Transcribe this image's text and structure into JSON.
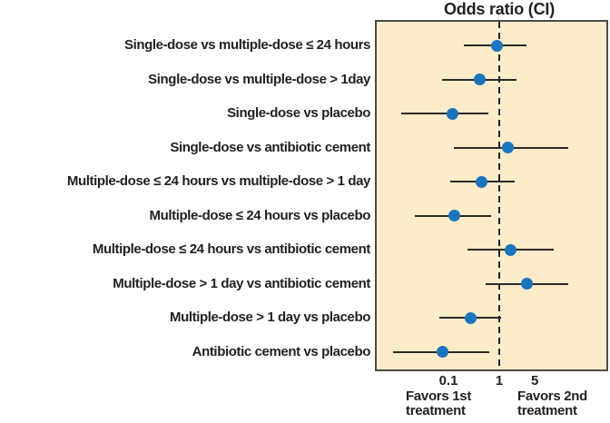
{
  "chart_data": {
    "type": "forest",
    "title": "Odds ratio (CI)",
    "x_scale": "log",
    "x_ticks": [
      0.1,
      1,
      5
    ],
    "reference_line": 1,
    "legend_position": "none",
    "grid": false,
    "notes": {
      "favors_left": "Favors 1st\ntreatment",
      "favors_right": "Favors 2nd\ntreatment"
    },
    "rows": [
      {
        "label": "Single-dose vs multiple-dose ≤ 24 hours",
        "or": 0.9,
        "ci_low": 0.2,
        "ci_high": 3.4
      },
      {
        "label": "Single-dose vs multiple-dose > 1day",
        "or": 0.41,
        "ci_low": 0.075,
        "ci_high": 2.2
      },
      {
        "label": "Single-dose vs placebo",
        "or": 0.12,
        "ci_low": 0.012,
        "ci_high": 0.62
      },
      {
        "label": "Single-dose vs antibiotic cement",
        "or": 1.5,
        "ci_low": 0.13,
        "ci_high": 23
      },
      {
        "label": "Multiple-dose ≤ 24 hours vs multiple-dose > 1 day",
        "or": 0.45,
        "ci_low": 0.11,
        "ci_high": 2.0
      },
      {
        "label": "Multiple-dose ≤ 24 hours vs placebo",
        "or": 0.13,
        "ci_low": 0.022,
        "ci_high": 0.7
      },
      {
        "label": "Multiple-dose ≤ 24 hours vs antibiotic cement",
        "or": 1.65,
        "ci_low": 0.24,
        "ci_high": 12
      },
      {
        "label": "Multiple-dose > 1 day vs antibiotic cement",
        "or": 3.5,
        "ci_low": 0.54,
        "ci_high": 23
      },
      {
        "label": "Multiple-dose > 1 day vs placebo",
        "or": 0.27,
        "ci_low": 0.066,
        "ci_high": 1.1
      },
      {
        "label": "Antibiotic cement vs placebo",
        "or": 0.078,
        "ci_low": 0.008,
        "ci_high": 0.63
      }
    ]
  },
  "colors": {
    "plot_background": "#fcecca",
    "plot_border": "#4b4b4b",
    "point": "#1b75bc",
    "ci_line": "#2b292a",
    "text": "#231f20"
  }
}
